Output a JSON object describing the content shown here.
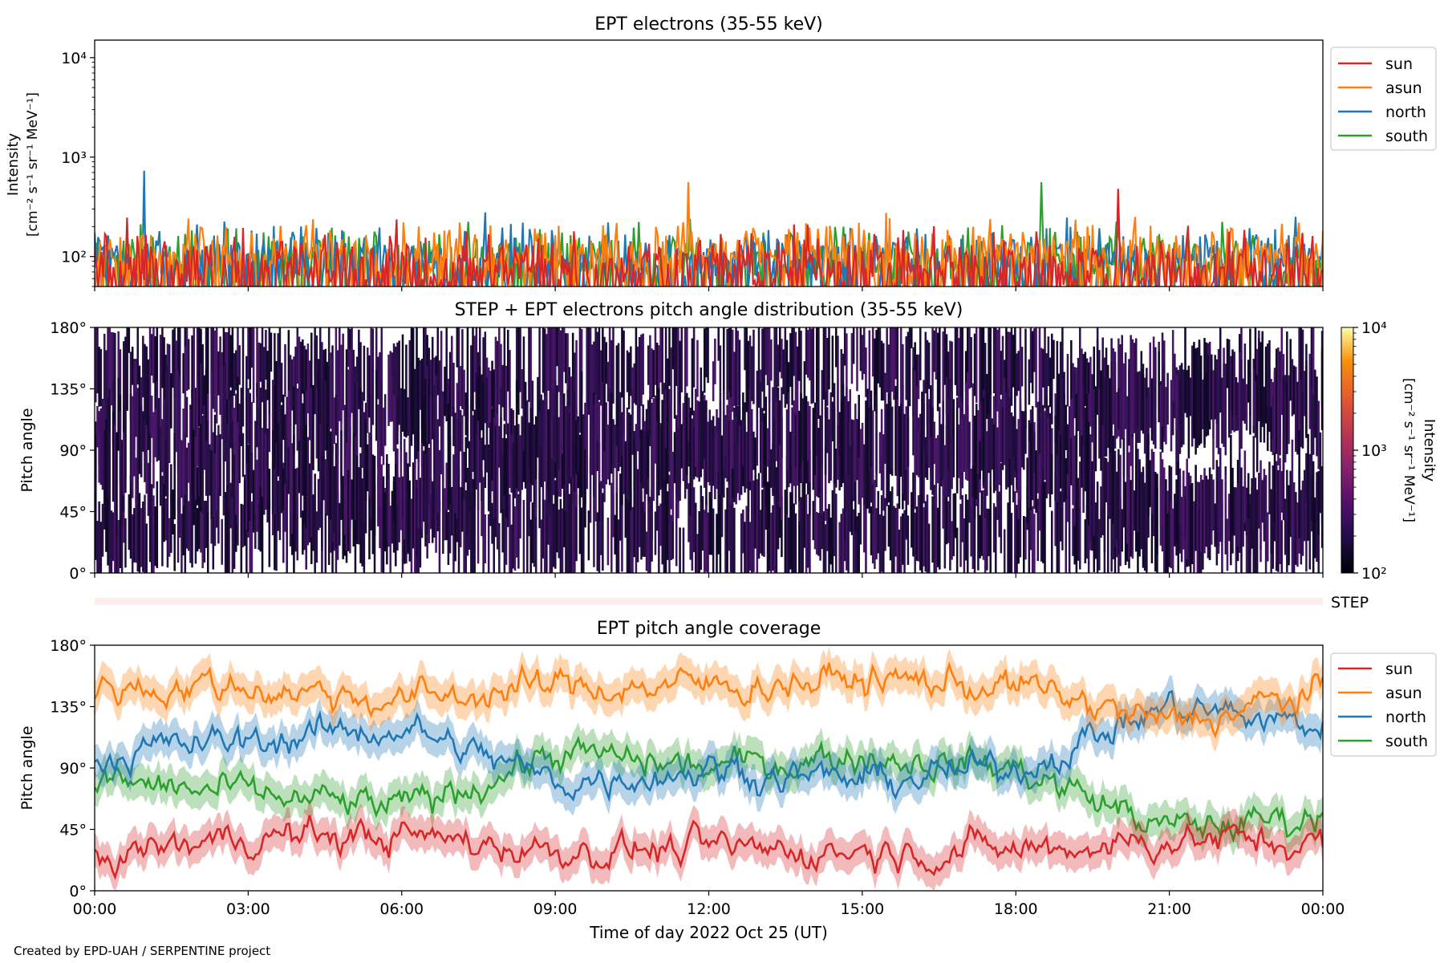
{
  "footer": "Created by EPD-UAH / SERPENTINE project",
  "colors": {
    "sun": "#d62728",
    "asun": "#ff7f0e",
    "north": "#1f77b4",
    "south": "#2ca02c",
    "step_bar": "#fdeeea"
  },
  "chart_data": [
    {
      "type": "line",
      "title": "EPT electrons (35-55 keV)",
      "ylabel_line1": "Intensity",
      "ylabel_line2": "[cm⁻² s⁻¹ sr⁻¹ MeV⁻¹]",
      "yscale": "log",
      "ylim": [
        50,
        15000
      ],
      "yticks": [
        {
          "value": 100,
          "label": "10²"
        },
        {
          "value": 1000,
          "label": "10³"
        },
        {
          "value": 10000,
          "label": "10⁴"
        }
      ],
      "xlim_hours": [
        0,
        24
      ],
      "legend": "outside-right",
      "series": [
        {
          "name": "sun",
          "baseline": 80,
          "spread": 2.2,
          "notable_peaks": [
            {
              "hour": 20.0,
              "value": 480
            }
          ]
        },
        {
          "name": "asun",
          "baseline": 110,
          "spread": 2.0,
          "notable_peaks": [
            {
              "hour": 11.6,
              "value": 560
            }
          ]
        },
        {
          "name": "north",
          "baseline": 100,
          "spread": 2.0,
          "notable_peaks": [
            {
              "hour": 0.97,
              "value": 730
            }
          ]
        },
        {
          "name": "south",
          "baseline": 95,
          "spread": 2.0,
          "notable_peaks": [
            {
              "hour": 18.5,
              "value": 560
            }
          ]
        }
      ]
    },
    {
      "type": "heatmap",
      "title": "STEP + EPT electrons pitch angle distribution (35-55 keV)",
      "ylabel": "Pitch angle",
      "ylim": [
        0,
        180
      ],
      "yticks": [
        "0°",
        "45°",
        "90°",
        "135°",
        "180°"
      ],
      "xlim_hours": [
        0,
        24
      ],
      "colorbar": {
        "scale": "log",
        "range": [
          100,
          10000
        ],
        "ticks": [
          "10²",
          "10³",
          "10⁴"
        ],
        "label_line1": "Intensity",
        "label_line2": "[cm⁻² s⁻¹ sr⁻¹ MeV⁻¹]"
      },
      "step_label": "STEP"
    },
    {
      "type": "line",
      "title": "EPT pitch angle coverage",
      "ylabel": "Pitch angle",
      "ylim": [
        0,
        180
      ],
      "yticks": [
        "0°",
        "45°",
        "90°",
        "135°",
        "180°"
      ],
      "xlim_hours": [
        0,
        24
      ],
      "xticks": [
        "00:00",
        "03:00",
        "06:00",
        "09:00",
        "12:00",
        "15:00",
        "18:00",
        "21:00",
        "00:00"
      ],
      "xlabel": "Time of day 2022 Oct 25 (UT)",
      "legend": "outside-right",
      "series": [
        {
          "name": "sun",
          "hours": [
            0,
            3,
            6,
            9,
            12,
            15,
            18,
            21,
            24
          ],
          "pitch_deg": [
            25,
            40,
            40,
            30,
            30,
            30,
            30,
            38,
            35
          ]
        },
        {
          "name": "asun",
          "hours": [
            0,
            3,
            6,
            9,
            12,
            15,
            18,
            21,
            24
          ],
          "pitch_deg": [
            150,
            150,
            140,
            150,
            150,
            155,
            150,
            122,
            145
          ]
        },
        {
          "name": "north",
          "hours": [
            0,
            3,
            6,
            9,
            12,
            15,
            18,
            21,
            24
          ],
          "pitch_deg": [
            100,
            110,
            120,
            80,
            90,
            80,
            90,
            135,
            120
          ]
        },
        {
          "name": "south",
          "hours": [
            0,
            3,
            6,
            9,
            12,
            15,
            18,
            21,
            24
          ],
          "pitch_deg": [
            80,
            70,
            60,
            100,
            90,
            100,
            90,
            45,
            55
          ]
        }
      ]
    }
  ]
}
